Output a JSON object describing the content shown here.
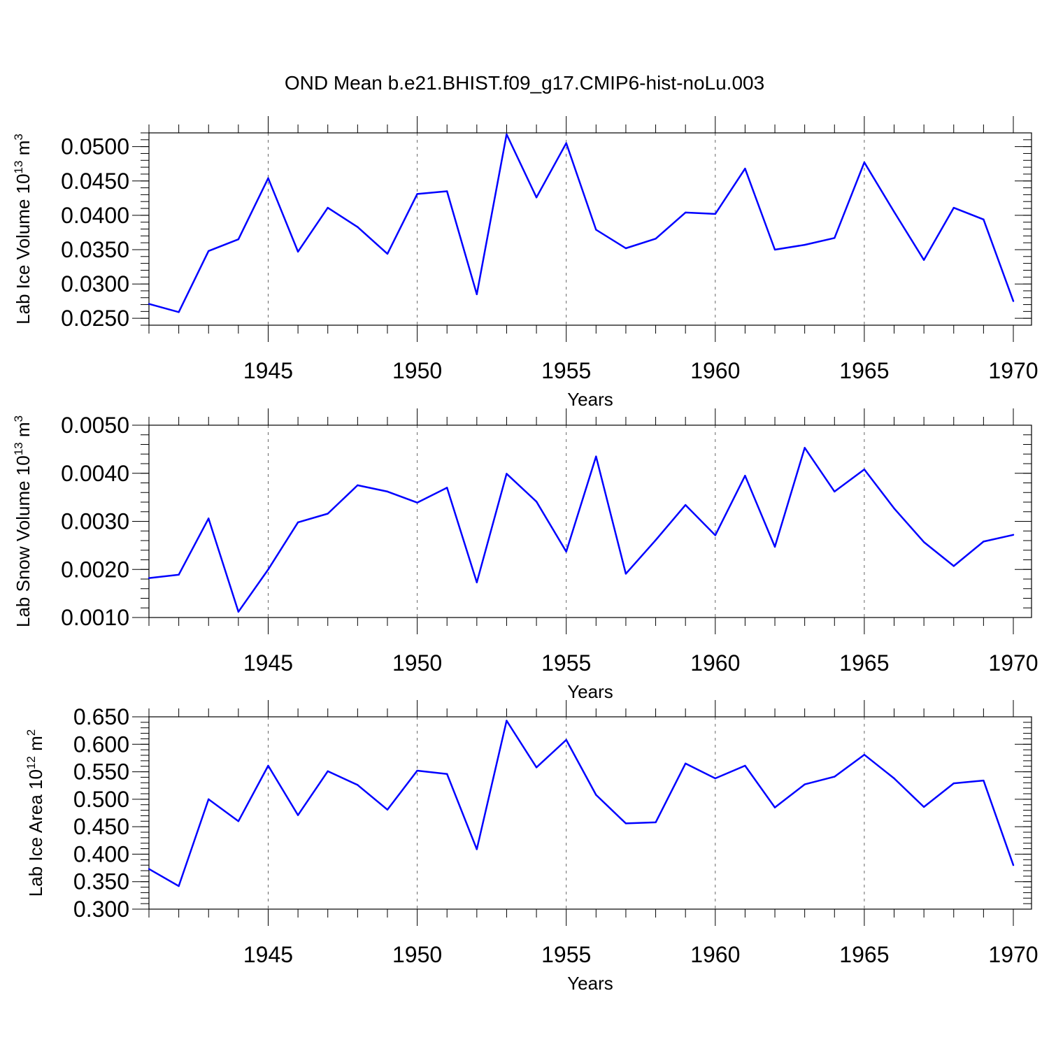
{
  "title": "OND Mean b.e21.BHIST.f09_g17.CMIP6-hist-noLu.003",
  "series_color": "#0000ff",
  "chart_data": [
    {
      "type": "line",
      "title": "",
      "xlabel": "Years",
      "ylabel": "Lab Ice Volume 10",
      "ylabel_exp": "13",
      "ylabel_unit": " m",
      "ylabel_unit_exp": "3",
      "x": [
        1941,
        1942,
        1943,
        1944,
        1945,
        1946,
        1947,
        1948,
        1949,
        1950,
        1951,
        1952,
        1953,
        1954,
        1955,
        1956,
        1957,
        1958,
        1959,
        1960,
        1961,
        1962,
        1963,
        1964,
        1965,
        1966,
        1967,
        1968,
        1969,
        1970
      ],
      "values": [
        0.0271,
        0.0259,
        0.0348,
        0.0365,
        0.0454,
        0.0347,
        0.0411,
        0.0383,
        0.0344,
        0.0431,
        0.0435,
        0.0285,
        0.0518,
        0.0426,
        0.0505,
        0.0379,
        0.0352,
        0.0366,
        0.0404,
        0.0402,
        0.0468,
        0.035,
        0.0357,
        0.0367,
        0.0477,
        0.0405,
        0.0335,
        0.0411,
        0.0394,
        0.0275
      ],
      "xlim": [
        1941,
        1970
      ],
      "ylim": [
        0.024,
        0.052
      ],
      "yticks": [
        0.025,
        0.03,
        0.035,
        0.04,
        0.045,
        0.05
      ],
      "yticklabels": [
        "0.0250",
        "0.0300",
        "0.0350",
        "0.0400",
        "0.0450",
        "0.0500"
      ],
      "yminor_step": 0.001,
      "xticks": [
        1945,
        1950,
        1955,
        1960,
        1965,
        1970
      ],
      "xticklabels": [
        "1945",
        "1950",
        "1955",
        "1960",
        "1965",
        "1970"
      ],
      "grid": "vertical dashed at major x ticks"
    },
    {
      "type": "line",
      "title": "",
      "xlabel": "Years",
      "ylabel": "Lab Snow Volume 10",
      "ylabel_exp": "13",
      "ylabel_unit": " m",
      "ylabel_unit_exp": "3",
      "x": [
        1941,
        1942,
        1943,
        1944,
        1945,
        1946,
        1947,
        1948,
        1949,
        1950,
        1951,
        1952,
        1953,
        1954,
        1955,
        1956,
        1957,
        1958,
        1959,
        1960,
        1961,
        1962,
        1963,
        1964,
        1965,
        1966,
        1967,
        1968,
        1969,
        1970
      ],
      "values": [
        0.00182,
        0.00189,
        0.00306,
        0.00112,
        0.002,
        0.00298,
        0.00316,
        0.00375,
        0.00362,
        0.00339,
        0.0037,
        0.00173,
        0.00399,
        0.00341,
        0.00237,
        0.00435,
        0.00191,
        0.00261,
        0.00334,
        0.00271,
        0.00395,
        0.00247,
        0.00453,
        0.00362,
        0.00408,
        0.00327,
        0.00257,
        0.00207,
        0.00258,
        0.00272
      ],
      "xlim": [
        1941,
        1970
      ],
      "ylim": [
        0.001,
        0.005
      ],
      "yticks": [
        0.001,
        0.002,
        0.003,
        0.004,
        0.005
      ],
      "yticklabels": [
        "0.0010",
        "0.0020",
        "0.0030",
        "0.0040",
        "0.0050"
      ],
      "yminor_step": 0.0002,
      "xticks": [
        1945,
        1950,
        1955,
        1960,
        1965,
        1970
      ],
      "xticklabels": [
        "1945",
        "1950",
        "1955",
        "1960",
        "1965",
        "1970"
      ],
      "grid": "vertical dashed at major x ticks"
    },
    {
      "type": "line",
      "title": "",
      "xlabel": "Years",
      "ylabel": "Lab Ice Area 10",
      "ylabel_exp": "12",
      "ylabel_unit": " m",
      "ylabel_unit_exp": "2",
      "x": [
        1941,
        1942,
        1943,
        1944,
        1945,
        1946,
        1947,
        1948,
        1949,
        1950,
        1951,
        1952,
        1953,
        1954,
        1955,
        1956,
        1957,
        1958,
        1959,
        1960,
        1961,
        1962,
        1963,
        1964,
        1965,
        1966,
        1967,
        1968,
        1969,
        1970
      ],
      "values": [
        0.373,
        0.342,
        0.5,
        0.46,
        0.561,
        0.471,
        0.551,
        0.526,
        0.481,
        0.552,
        0.546,
        0.409,
        0.643,
        0.558,
        0.608,
        0.508,
        0.456,
        0.458,
        0.565,
        0.538,
        0.561,
        0.485,
        0.527,
        0.541,
        0.581,
        0.538,
        0.486,
        0.529,
        0.534,
        0.38
      ],
      "xlim": [
        1941,
        1970
      ],
      "ylim": [
        0.3,
        0.65
      ],
      "yticks": [
        0.3,
        0.35,
        0.4,
        0.45,
        0.5,
        0.55,
        0.6,
        0.65
      ],
      "yticklabels": [
        "0.300",
        "0.350",
        "0.400",
        "0.450",
        "0.500",
        "0.550",
        "0.600",
        "0.650"
      ],
      "yminor_step": 0.01,
      "xticks": [
        1945,
        1950,
        1955,
        1960,
        1965,
        1970
      ],
      "xticklabels": [
        "1945",
        "1950",
        "1955",
        "1960",
        "1965",
        "1970"
      ],
      "grid": "vertical dashed at major x ticks"
    }
  ]
}
